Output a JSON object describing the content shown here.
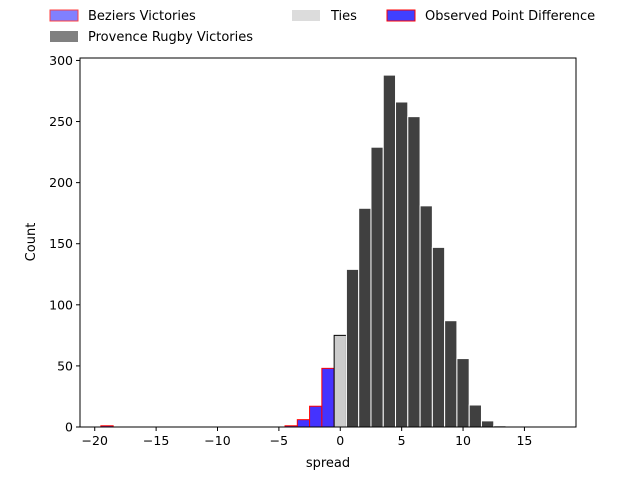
{
  "chart_data": {
    "type": "bar",
    "xlabel": "spread",
    "ylabel": "Count",
    "xlim": [
      -21.2,
      19.2
    ],
    "ylim": [
      0,
      302
    ],
    "xticks": [
      -20,
      -15,
      -10,
      -5,
      0,
      5,
      10,
      15
    ],
    "yticks": [
      0,
      50,
      100,
      150,
      200,
      250,
      300
    ],
    "grid": false,
    "legend_placement": "top, above plot",
    "colors": {
      "beziers_fill": "#8080ff",
      "beziers_edge": "#ff4040",
      "provence_fill": "#808080",
      "ties_fill": "#dcdcdc",
      "observed_fill": "#4040ff",
      "observed_edge": "#ff0000",
      "bar_dark": "#404040",
      "bar_blue": "#4433ff",
      "bar_tie": "#cccccc"
    },
    "legend": [
      {
        "key": "beziers",
        "label": "Beziers Victories"
      },
      {
        "key": "provence",
        "label": "Provence Rugby Victories"
      },
      {
        "key": "ties",
        "label": "Ties"
      },
      {
        "key": "observed",
        "label": "Observed Point Difference"
      }
    ],
    "series": [
      {
        "key": "beziers",
        "bins": [
          {
            "x": -19,
            "count": 1
          },
          {
            "x": -5,
            "count": 0
          },
          {
            "x": -4,
            "count": 1
          },
          {
            "x": -3,
            "count": 6
          },
          {
            "x": -2,
            "count": 17
          },
          {
            "x": -1,
            "count": 48
          }
        ]
      },
      {
        "key": "ties",
        "bins": [
          {
            "x": 0,
            "count": 75
          }
        ]
      },
      {
        "key": "provence",
        "bins": [
          {
            "x": 1,
            "count": 129
          },
          {
            "x": 2,
            "count": 179
          },
          {
            "x": 3,
            "count": 229
          },
          {
            "x": 4,
            "count": 288
          },
          {
            "x": 5,
            "count": 266
          },
          {
            "x": 6,
            "count": 254
          },
          {
            "x": 7,
            "count": 181
          },
          {
            "x": 8,
            "count": 147
          },
          {
            "x": 9,
            "count": 87
          },
          {
            "x": 10,
            "count": 56
          },
          {
            "x": 11,
            "count": 18
          },
          {
            "x": 12,
            "count": 5
          },
          {
            "x": 13,
            "count": 1
          },
          {
            "x": 14,
            "count": 0
          }
        ]
      }
    ]
  }
}
